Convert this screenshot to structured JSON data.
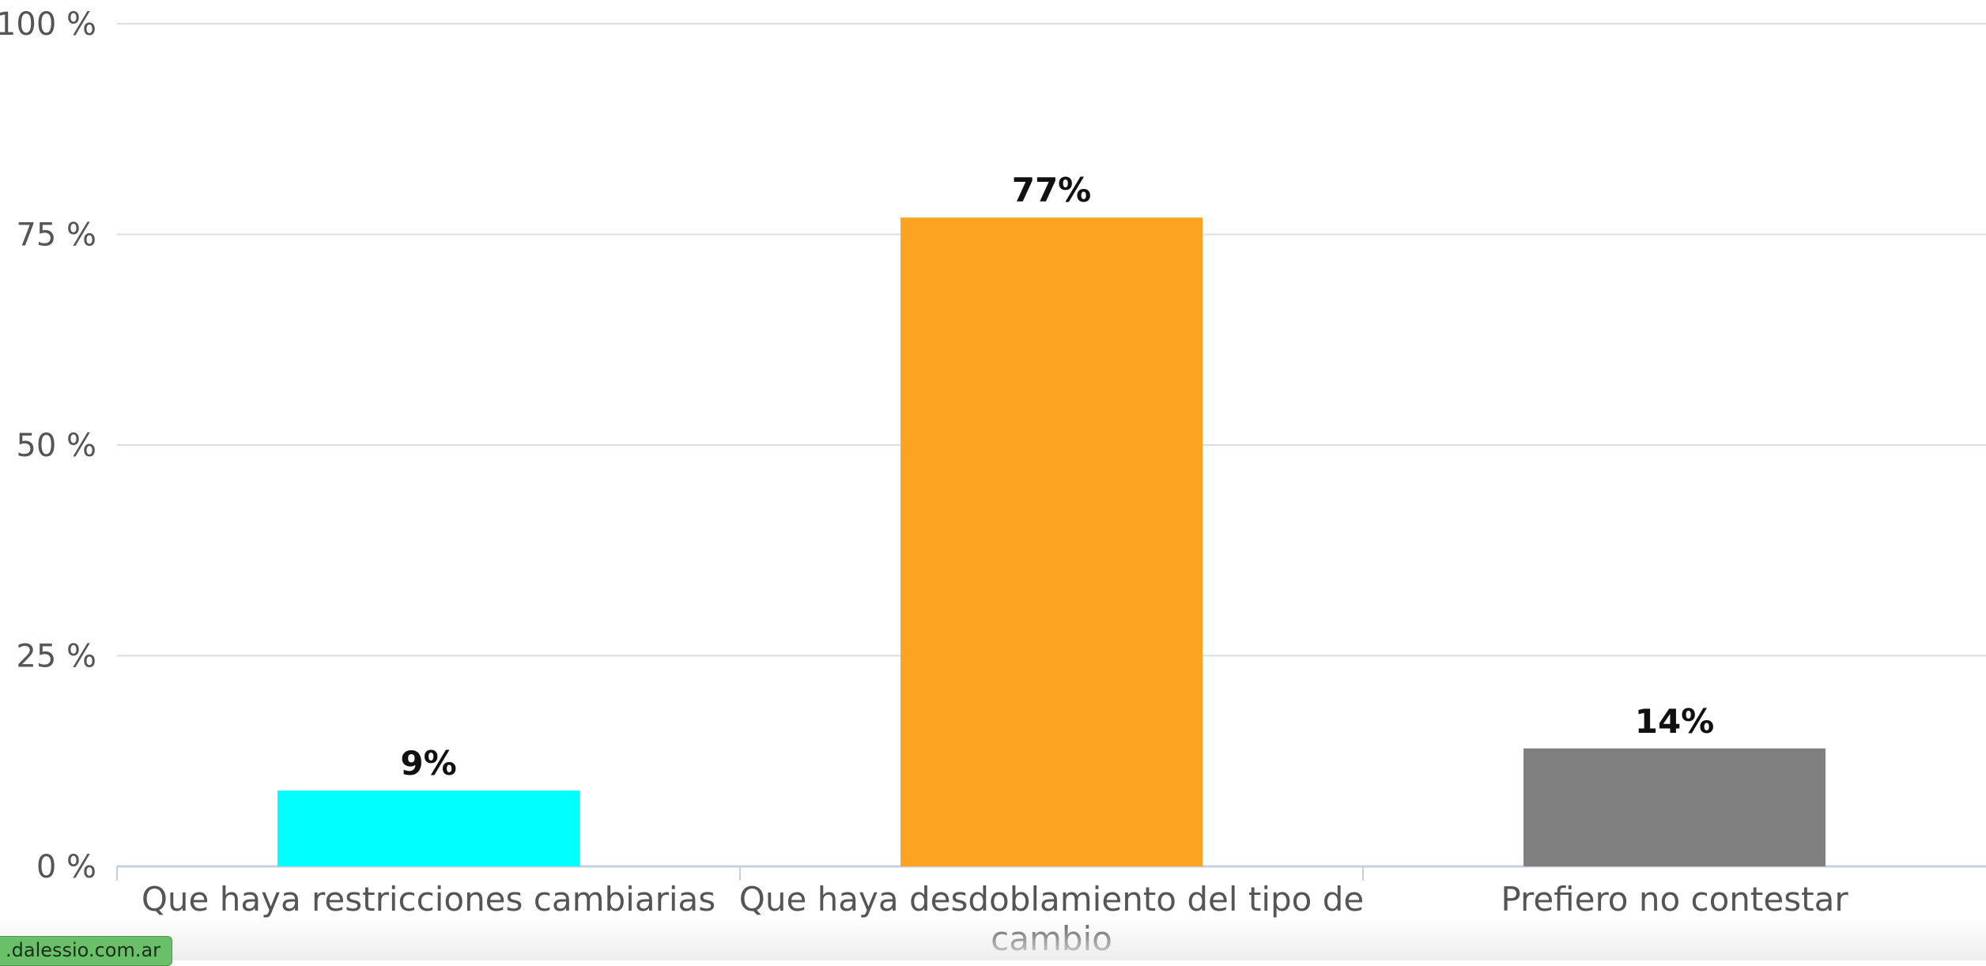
{
  "chart_data": {
    "type": "bar",
    "categories": [
      "Que haya restricciones cambiarias",
      "Que haya desdoblamiento del tipo de cambio",
      "Prefiero no contestar"
    ],
    "category_label_lines": [
      [
        "Que haya restricciones cambiarias"
      ],
      [
        "Que haya desdoblamiento del tipo de",
        "cambio"
      ],
      [
        "Prefiero no contestar"
      ]
    ],
    "values": [
      9,
      77,
      14
    ],
    "data_labels": [
      "9%",
      "77%",
      "14%"
    ],
    "colors": [
      "#00ffff",
      "#fca421",
      "#808080"
    ],
    "ylim": [
      0,
      100
    ],
    "yticks": [
      0,
      25,
      50,
      75,
      100
    ],
    "ytick_labels": [
      "0 %",
      "25 %",
      "50 %",
      "75 %",
      "100 %"
    ],
    "grid": true,
    "title": "",
    "xlabel": "",
    "ylabel": ""
  },
  "watermark": {
    "text": ".dalessio.com.ar"
  }
}
